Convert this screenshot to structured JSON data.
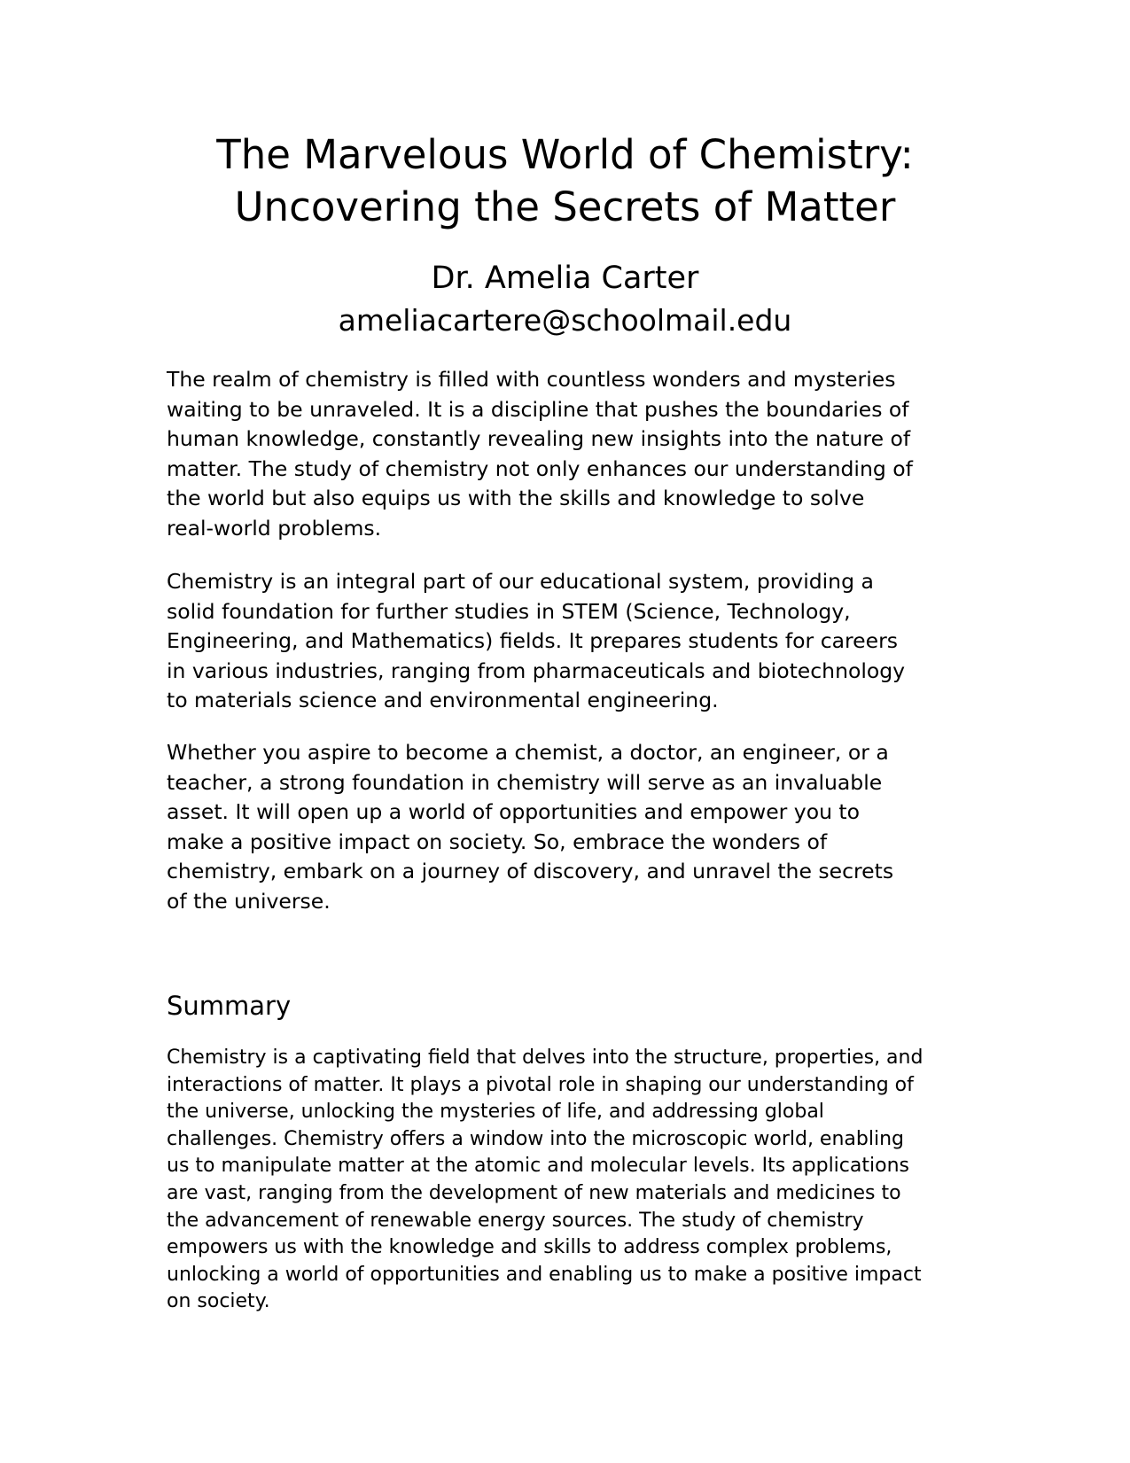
{
  "document": {
    "title_lines": [
      "The Marvelous World of Chemistry:",
      "Uncovering the Secrets of Matter"
    ],
    "author": "Dr. Amelia Carter",
    "email": "ameliacartere@schoolmail.edu",
    "paragraphs": [
      [
        "The realm of chemistry is filled with countless wonders and mysteries",
        "waiting to be unraveled. It is a discipline that pushes the boundaries of",
        "human knowledge, constantly revealing new insights into the nature of",
        "matter. The study of chemistry not only enhances our understanding of",
        "the world but also equips us with the skills and knowledge to solve",
        "real-world problems."
      ],
      [
        "Chemistry is an integral part of our educational system, providing a",
        "solid foundation for further studies in STEM (Science, Technology,",
        "Engineering, and Mathematics) fields. It prepares students for careers",
        "in various industries, ranging from pharmaceuticals and biotechnology",
        "to materials science and environmental engineering."
      ],
      [
        "Whether you aspire to become a chemist, a doctor, an engineer, or a",
        "teacher, a strong foundation in chemistry will serve as an invaluable",
        "asset. It will open up a world of opportunities and empower you to",
        "make a positive impact on society. So, embrace the wonders of",
        "chemistry, embark on a journey of discovery, and unravel the secrets",
        "of the universe."
      ]
    ],
    "summary": {
      "heading": "Summary",
      "lines": [
        "Chemistry is a captivating field that delves into the structure, properties, and",
        "interactions of matter. It plays a pivotal role in shaping our understanding of",
        "the universe, unlocking the mysteries of life, and addressing global",
        "challenges. Chemistry offers a window into the microscopic world, enabling",
        "us to manipulate matter at the atomic and molecular levels. Its applications",
        "are vast, ranging from the development of new materials and medicines to",
        "the advancement of renewable energy sources. The study of chemistry",
        "empowers us with the knowledge and skills to address complex problems,",
        "unlocking a world of opportunities and enabling us to make a positive impact",
        "on society."
      ]
    }
  }
}
